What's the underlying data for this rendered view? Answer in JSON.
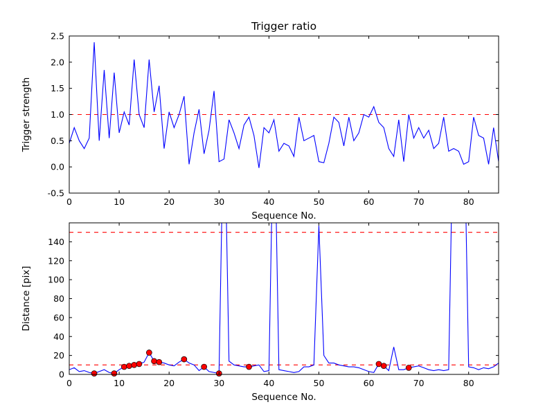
{
  "figure": {
    "background": "#ffffff",
    "frame_color": "#000000",
    "text_color": "#000000"
  },
  "chart_data": [
    {
      "type": "line",
      "title": "Trigger ratio",
      "xlabel": "Sequence No.",
      "ylabel": "Trigger strength",
      "xlim": [
        0,
        86
      ],
      "ylim": [
        -0.5,
        2.5
      ],
      "xticks": [
        0,
        10,
        20,
        30,
        40,
        50,
        60,
        70,
        80
      ],
      "yticks": [
        -0.5,
        0.0,
        0.5,
        1.0,
        1.5,
        2.0,
        2.5
      ],
      "ytick_decimals": 1,
      "grid": false,
      "legend": "none",
      "line_color": "#0000ff",
      "threshold_color": "#ff0000",
      "thresholds": [
        1.0
      ],
      "x_start": 0,
      "values": [
        0.45,
        0.75,
        0.5,
        0.35,
        0.55,
        2.38,
        0.5,
        1.85,
        0.55,
        1.8,
        0.65,
        1.05,
        0.8,
        2.05,
        1.0,
        0.75,
        2.05,
        1.05,
        1.55,
        0.35,
        1.05,
        0.75,
        1.0,
        1.35,
        0.05,
        0.65,
        1.1,
        0.25,
        0.7,
        1.45,
        0.1,
        0.15,
        0.9,
        0.65,
        0.35,
        0.8,
        0.95,
        0.6,
        -0.02,
        0.75,
        0.65,
        0.9,
        0.3,
        0.45,
        0.4,
        0.2,
        0.95,
        0.5,
        0.55,
        0.6,
        0.1,
        0.08,
        0.45,
        0.95,
        0.85,
        0.4,
        0.95,
        0.5,
        0.65,
        1.0,
        0.95,
        1.15,
        0.85,
        0.75,
        0.35,
        0.2,
        0.9,
        0.1,
        1.0,
        0.55,
        0.75,
        0.55,
        0.7,
        0.35,
        0.45,
        0.95,
        0.3,
        0.35,
        0.3,
        0.05,
        0.1,
        0.95,
        0.6,
        0.55,
        0.05,
        0.75,
        0.1
      ]
    },
    {
      "type": "line",
      "title": "",
      "xlabel": "Sequence No.",
      "ylabel": "Distance [pix]",
      "xlim": [
        0,
        86
      ],
      "ylim": [
        0,
        160
      ],
      "xticks": [
        0,
        10,
        20,
        30,
        40,
        50,
        60,
        70,
        80
      ],
      "yticks": [
        0,
        20,
        40,
        60,
        80,
        100,
        120,
        140
      ],
      "ytick_decimals": 0,
      "grid": false,
      "legend": "none",
      "line_color": "#0000ff",
      "threshold_color": "#ff0000",
      "thresholds": [
        10,
        150
      ],
      "marker_color": "#ff0000",
      "marker_edge_color": "#000000",
      "marker_indices": [
        5,
        9,
        11,
        12,
        13,
        14,
        16,
        17,
        18,
        23,
        27,
        30,
        36,
        62,
        63,
        68
      ],
      "x_start": 0,
      "values": [
        5,
        7,
        3,
        4,
        2,
        1,
        3,
        5,
        2,
        1,
        5,
        8,
        9,
        10,
        11,
        13,
        23,
        14,
        13,
        12,
        10,
        9,
        13,
        16,
        12,
        10,
        4,
        8,
        3,
        2,
        1,
        300,
        14,
        10,
        9,
        8,
        8,
        9,
        10,
        3,
        4,
        300,
        5,
        4,
        3,
        2,
        3,
        8,
        8,
        10,
        157,
        20,
        12,
        12,
        10,
        9,
        8,
        8,
        7,
        5,
        3,
        2,
        11,
        9,
        4,
        29,
        5,
        5,
        7,
        8,
        9,
        7,
        5,
        4,
        5,
        4,
        5,
        300,
        300,
        300,
        8,
        7,
        5,
        7,
        6,
        8,
        12
      ]
    }
  ]
}
